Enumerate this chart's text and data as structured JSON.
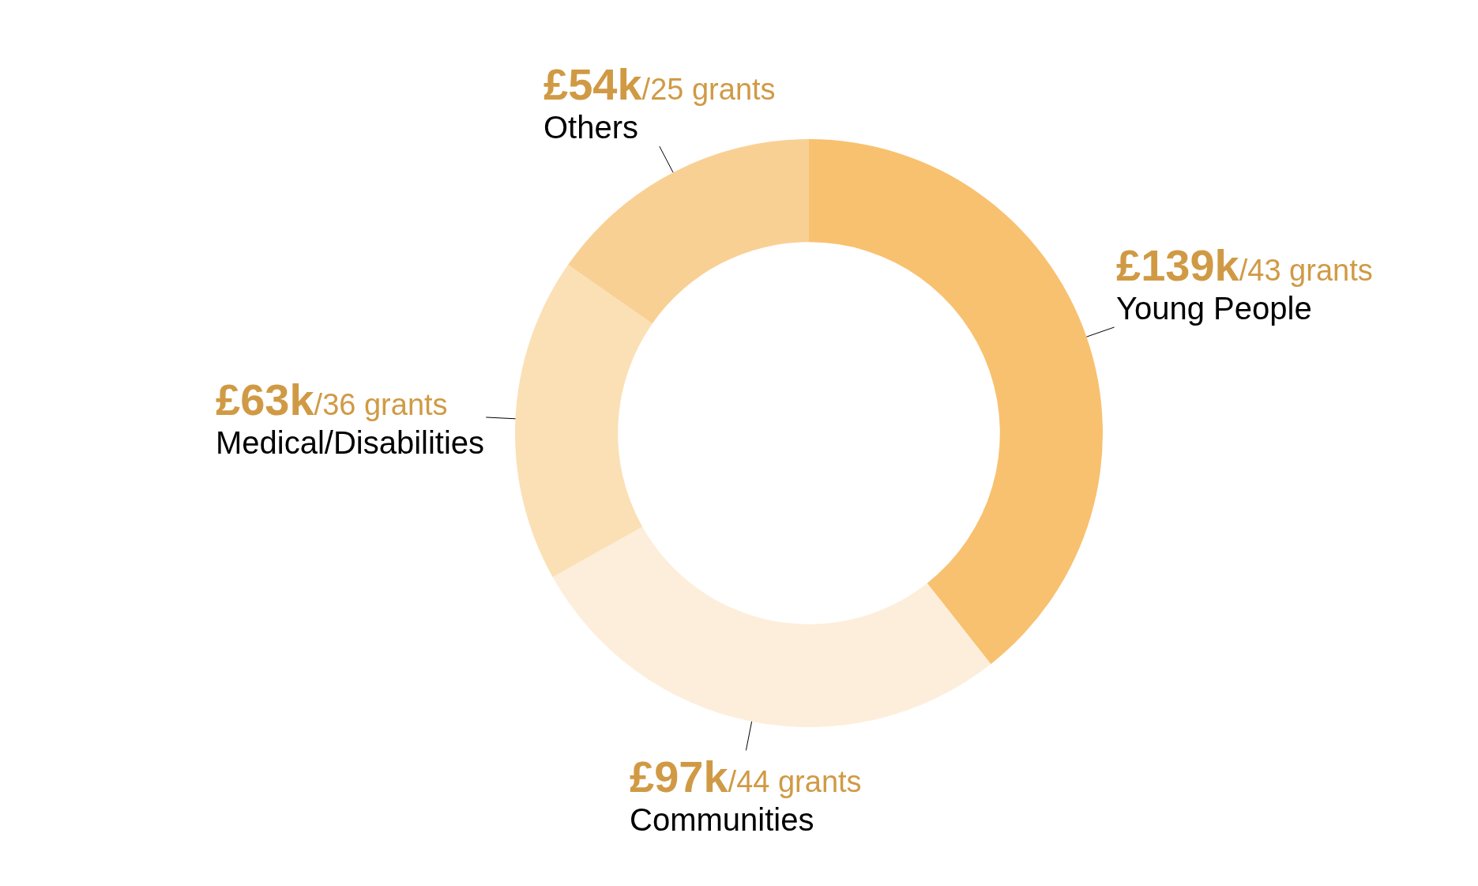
{
  "chart_data": {
    "type": "donut",
    "categories": [
      "Young People",
      "Communities",
      "Medical/Disabilities",
      "Others"
    ],
    "values": [
      139,
      97,
      63,
      54
    ],
    "value_labels": [
      "£139k",
      "£97k",
      "£63k",
      "£54k"
    ],
    "annotations": [
      "/43 grants",
      "/44 grants",
      "/36 grants",
      "/25 grants"
    ],
    "colors": [
      "#f8c170",
      "#fdeedb",
      "#fbe0b5",
      "#f9d094"
    ],
    "legend": false
  }
}
